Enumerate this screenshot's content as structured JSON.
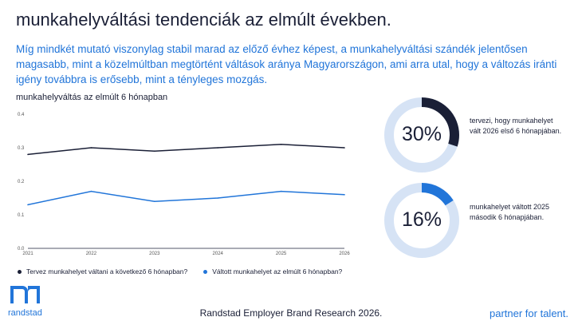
{
  "title": "munkahelyváltási tendenciák az elmúlt években.",
  "subtitle": "Míg mindkét mutató viszonylag stabil marad az előző évhez képest, a munkahelyváltási szándék jelentősen magasabb, mint a közelmúltban megtörtént váltások aránya Magyarországon, ami arra utal, hogy a változás iránti igény továbbra is erősebb, mint a tényleges mozgás.",
  "chart_data": {
    "type": "line",
    "title": "munkahelyváltás az elmúlt 6 hónapban",
    "x": [
      "2021",
      "2022",
      "2023",
      "2024",
      "2025",
      "2026"
    ],
    "ylim": [
      0,
      0.4
    ],
    "y_ticks": [
      "0.0",
      "0.1",
      "0.2",
      "0.3",
      "0.4"
    ],
    "grid": false,
    "legend_position": "bottom",
    "series": [
      {
        "name": "Tervez munkahelyet váltani a következő 6 hónapban?",
        "color": "#1a1f36",
        "values": [
          0.28,
          0.3,
          0.29,
          0.3,
          0.31,
          0.3
        ]
      },
      {
        "name": "Váltott munkahelyet az elmúlt 6 hónapban?",
        "color": "#2175d9",
        "values": [
          0.13,
          0.17,
          0.14,
          0.15,
          0.17,
          0.16
        ]
      }
    ]
  },
  "kpis": [
    {
      "value": "30%",
      "fraction": 0.3,
      "color": "#1a1f36",
      "text": "tervezi, hogy munkahelyet vált 2026 első 6 hónapjában."
    },
    {
      "value": "16%",
      "fraction": 0.16,
      "color": "#2175d9",
      "text": "munkahelyet váltott 2025 második 6 hónapjában."
    }
  ],
  "ring_track_color": "#d6e3f5",
  "footer": {
    "brand": "randstad",
    "center": "Randstad Employer Brand Research 2026.",
    "tagline": "partner for talent."
  }
}
